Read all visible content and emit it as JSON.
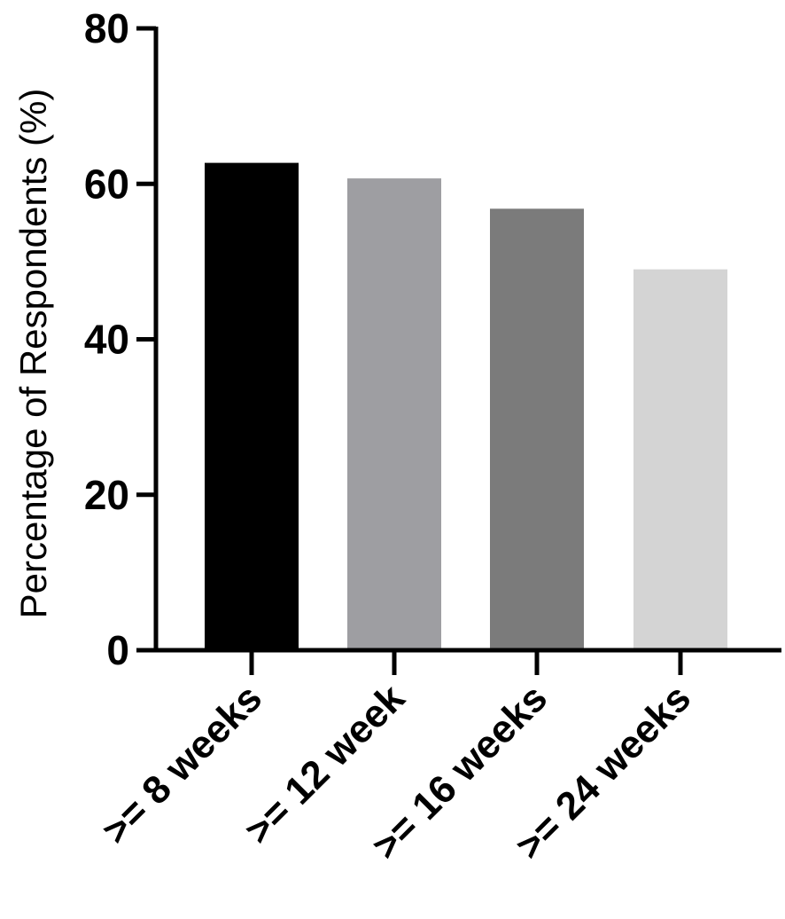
{
  "chart_data": {
    "type": "bar",
    "title": "",
    "xlabel": "",
    "ylabel": "Percentage of Respondents (%)",
    "categories": [
      ">= 8 weeks",
      ">= 12 week",
      ">= 16 weeks",
      ">= 24 weeks"
    ],
    "values": [
      62.7,
      60.7,
      56.8,
      49.0
    ],
    "bar_colors": [
      "#000000",
      "#9e9ea2",
      "#7b7b7b",
      "#d4d4d4"
    ],
    "ylim": [
      0,
      80
    ],
    "yticks": [
      0,
      20,
      40,
      60,
      80
    ],
    "grid": false,
    "legend": "none"
  }
}
